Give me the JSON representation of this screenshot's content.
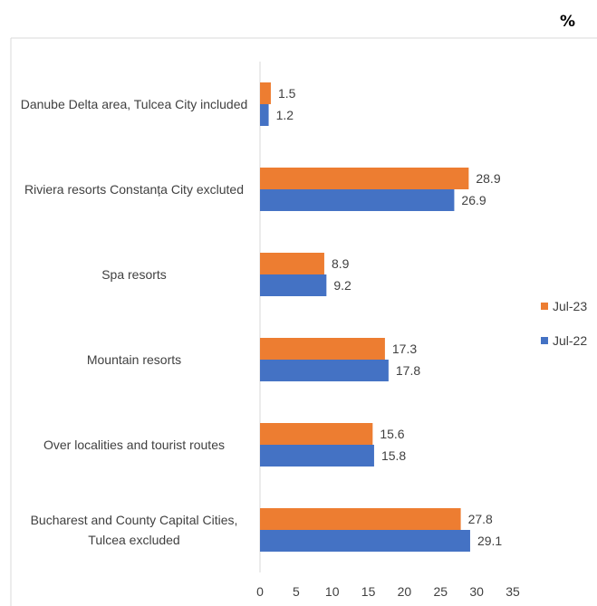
{
  "unit_label": "%",
  "chart_data": {
    "type": "bar",
    "orientation": "horizontal",
    "categories": [
      "Danube Delta area, Tulcea City included",
      "Riviera resorts Constanța City excluted",
      "Spa resorts",
      "Mountain resorts",
      "Over localities and tourist routes",
      "Bucharest and County Capital Cities, Tulcea excluded"
    ],
    "series": [
      {
        "name": "Jul-23",
        "color": "#ED7D31",
        "values": [
          1.5,
          28.9,
          8.9,
          17.3,
          15.6,
          27.8
        ]
      },
      {
        "name": "Jul-22",
        "color": "#4472C4",
        "values": [
          1.2,
          26.9,
          9.2,
          17.8,
          15.8,
          29.1
        ]
      }
    ],
    "xlim": [
      0,
      35
    ],
    "xticks": [
      "0",
      "5",
      "10",
      "15",
      "20",
      "25",
      "30",
      "35"
    ],
    "grid": false,
    "legend_position": "right",
    "data_labels": true
  }
}
